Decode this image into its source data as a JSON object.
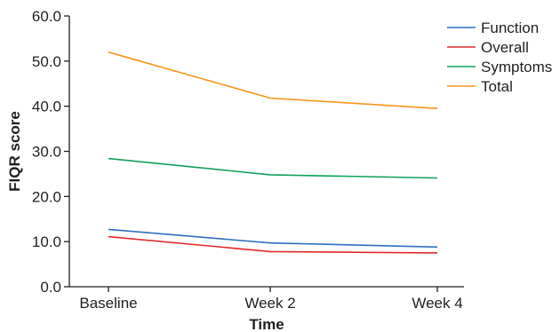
{
  "chart_data": {
    "type": "line",
    "title": "",
    "xlabel": "Time",
    "ylabel": "FIQR score",
    "categories": [
      "Baseline",
      "Week 2",
      "Week 4"
    ],
    "ylim": [
      0,
      60
    ],
    "yticks": [
      "0.0",
      "10.0",
      "20.0",
      "30.0",
      "40.0",
      "50.0",
      "60.0"
    ],
    "grid": false,
    "legend_position": "top-right",
    "series": [
      {
        "name": "Function",
        "color": "#2e6fbf",
        "values": [
          12.7,
          9.7,
          8.8
        ]
      },
      {
        "name": "Overall",
        "color": "#e0282b",
        "values": [
          11.1,
          7.8,
          7.5
        ]
      },
      {
        "name": "Symptoms",
        "color": "#10a05a",
        "values": [
          28.4,
          24.8,
          24.1
        ]
      },
      {
        "name": "Total",
        "color": "#f7941d",
        "values": [
          52.0,
          41.8,
          39.5
        ]
      }
    ]
  }
}
